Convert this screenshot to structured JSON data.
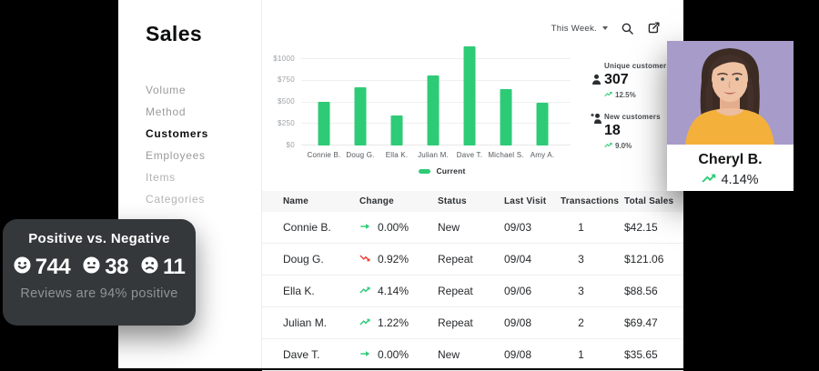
{
  "sidebar": {
    "title": "Sales",
    "items": [
      {
        "label": "Volume",
        "active": false
      },
      {
        "label": "Method",
        "active": false
      },
      {
        "label": "Customers",
        "active": true
      },
      {
        "label": "Employees",
        "active": false
      },
      {
        "label": "Items",
        "active": false
      },
      {
        "label": "Categories",
        "active": false
      }
    ]
  },
  "toolbar": {
    "period_label": "This Week.",
    "icons": [
      "caret-down-icon",
      "search-icon",
      "share-icon"
    ]
  },
  "chart_data": {
    "type": "bar",
    "title": "",
    "xlabel": "",
    "ylabel": "",
    "categories": [
      "Connie B.",
      "Doug G.",
      "Ella K.",
      "Julian M.",
      "Dave T.",
      "Michael S.",
      "Amy A."
    ],
    "values": [
      505,
      670,
      345,
      810,
      1150,
      650,
      495
    ],
    "series_name": "Current",
    "y_ticks": [
      "$0",
      "$250",
      "$500",
      "$750",
      "$1000"
    ],
    "y_tick_values": [
      0,
      250,
      500,
      750,
      1000
    ],
    "ylim": [
      0,
      1210
    ],
    "grid": true,
    "legend": [
      "Current"
    ],
    "legend_position": "bottom",
    "bar_color": "#2ECB77"
  },
  "stats": [
    {
      "icon": "person-icon",
      "label": "Unique customers",
      "value": "307",
      "change": "12.5%",
      "trend": "up"
    },
    {
      "icon": "person-plus-icon",
      "label": "New customers",
      "value": "18",
      "change": "9.0%",
      "trend": "up"
    }
  ],
  "table": {
    "columns": [
      "Name",
      "Change",
      "Status",
      "Last Visit",
      "Transactions",
      "Total Sales"
    ],
    "rows": [
      {
        "name": "Connie B.",
        "change": "0.00%",
        "trend": "flat",
        "status": "New",
        "last_visit": "09/03",
        "transactions": "1",
        "total_sales": "$42.15"
      },
      {
        "name": "Doug G.",
        "change": "0.92%",
        "trend": "down",
        "status": "Repeat",
        "last_visit": "09/04",
        "transactions": "3",
        "total_sales": "$121.06"
      },
      {
        "name": "Ella K.",
        "change": "4.14%",
        "trend": "up",
        "status": "Repeat",
        "last_visit": "09/06",
        "transactions": "3",
        "total_sales": "$88.56"
      },
      {
        "name": "Julian M.",
        "change": "1.22%",
        "trend": "up",
        "status": "Repeat",
        "last_visit": "09/08",
        "transactions": "2",
        "total_sales": "$69.47"
      },
      {
        "name": "Dave T.",
        "change": "0.00%",
        "trend": "flat",
        "status": "New",
        "last_visit": "09/08",
        "transactions": "1",
        "total_sales": "$35.65"
      }
    ]
  },
  "reviews_card": {
    "title": "Positive vs. Negative",
    "stats": [
      {
        "icon": "happy-face-icon",
        "value": "744"
      },
      {
        "icon": "neutral-face-icon",
        "value": "38"
      },
      {
        "icon": "sad-face-icon",
        "value": "11"
      }
    ],
    "summary": "Reviews are 94% positive"
  },
  "customer_card": {
    "name": "Cheryl B.",
    "change": "4.14%",
    "trend": "up"
  },
  "colors": {
    "accent_green": "#2ECB77",
    "negative_red": "#EF4136",
    "dark_card_bg": "#34383B",
    "photo_bg": "#A79BC9",
    "shirt_yellow": "#F3B13C"
  }
}
